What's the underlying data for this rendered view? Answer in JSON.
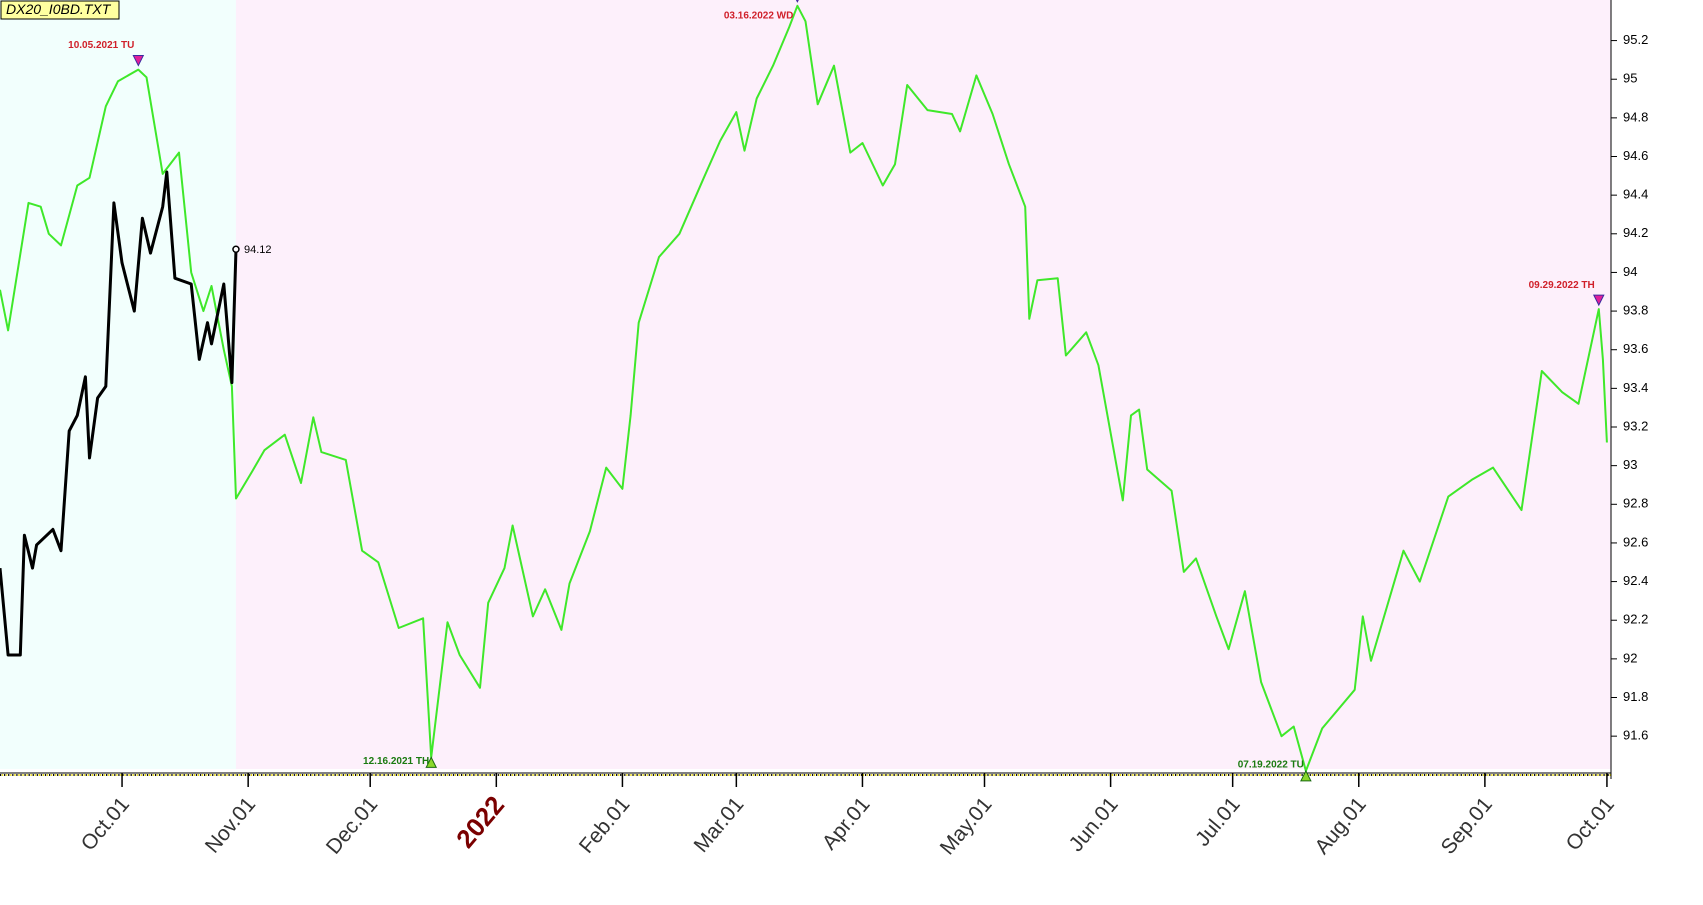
{
  "chart_data": {
    "type": "line",
    "title": "DX20_I0BD.TXT",
    "series": [
      {
        "color": "#3fe82a",
        "x": [
          "2021-09-01",
          "2021-09-03",
          "2021-09-08",
          "2021-09-11",
          "2021-09-13",
          "2021-09-16",
          "2021-09-20",
          "2021-09-23",
          "2021-09-27",
          "2021-09-30",
          "2021-10-05",
          "2021-10-07",
          "2021-10-11",
          "2021-10-15",
          "2021-10-18",
          "2021-10-21",
          "2021-10-23",
          "2021-10-26",
          "2021-10-28",
          "2021-10-29",
          "2021-11-02",
          "2021-11-05",
          "2021-11-10",
          "2021-11-14",
          "2021-11-17",
          "2021-11-19",
          "2021-11-25",
          "2021-11-29",
          "2021-12-03",
          "2021-12-08",
          "2021-12-14",
          "2021-12-16",
          "2021-12-20",
          "2021-12-23",
          "2021-12-28",
          "2021-12-30",
          "2022-01-03",
          "2022-01-05",
          "2022-01-10",
          "2022-01-13",
          "2022-01-17",
          "2022-01-19",
          "2022-01-24",
          "2022-01-28",
          "2022-02-01",
          "2022-02-03",
          "2022-02-05",
          "2022-02-10",
          "2022-02-15",
          "2022-02-21",
          "2022-02-25",
          "2022-03-01",
          "2022-03-03",
          "2022-03-06",
          "2022-03-10",
          "2022-03-14",
          "2022-03-16",
          "2022-03-18",
          "2022-03-21",
          "2022-03-25",
          "2022-03-29",
          "2022-04-01",
          "2022-04-06",
          "2022-04-09",
          "2022-04-12",
          "2022-04-17",
          "2022-04-23",
          "2022-04-25",
          "2022-04-29",
          "2022-05-03",
          "2022-05-07",
          "2022-05-11",
          "2022-05-12",
          "2022-05-14",
          "2022-05-19",
          "2022-05-21",
          "2022-05-26",
          "2022-05-29",
          "2022-06-04",
          "2022-06-06",
          "2022-06-08",
          "2022-06-10",
          "2022-06-16",
          "2022-06-19",
          "2022-06-22",
          "2022-06-27",
          "2022-06-30",
          "2022-07-04",
          "2022-07-08",
          "2022-07-13",
          "2022-07-16",
          "2022-07-19",
          "2022-07-23",
          "2022-07-31",
          "2022-08-02",
          "2022-08-04",
          "2022-08-12",
          "2022-08-16",
          "2022-08-23",
          "2022-08-29",
          "2022-09-03",
          "2022-09-10",
          "2022-09-15",
          "2022-09-20",
          "2022-09-24",
          "2022-09-29",
          "2022-09-30",
          "2022-10-01"
        ],
        "values": [
          93.91,
          93.7,
          94.36,
          94.34,
          94.2,
          94.14,
          94.45,
          94.49,
          94.86,
          94.99,
          95.05,
          95.01,
          94.51,
          94.62,
          94.0,
          93.8,
          93.93,
          93.6,
          93.41,
          92.83,
          92.97,
          93.08,
          93.16,
          92.91,
          93.25,
          93.07,
          93.03,
          92.56,
          92.5,
          92.16,
          92.21,
          91.49,
          92.19,
          92.02,
          91.85,
          92.29,
          92.47,
          92.69,
          92.22,
          92.36,
          92.15,
          92.39,
          92.66,
          92.99,
          92.88,
          93.26,
          93.74,
          94.08,
          94.2,
          94.49,
          94.68,
          94.83,
          94.63,
          94.9,
          95.07,
          95.27,
          95.38,
          95.3,
          94.87,
          95.07,
          94.62,
          94.67,
          94.45,
          94.56,
          94.97,
          94.84,
          94.82,
          94.73,
          95.02,
          94.82,
          94.56,
          94.34,
          93.76,
          93.96,
          93.97,
          93.57,
          93.69,
          93.52,
          92.82,
          93.26,
          93.29,
          92.98,
          92.87,
          92.45,
          92.52,
          92.22,
          92.05,
          92.35,
          91.88,
          91.6,
          91.65,
          91.42,
          91.64,
          91.84,
          92.22,
          91.99,
          92.56,
          92.4,
          92.84,
          92.93,
          92.99,
          92.77,
          93.49,
          93.38,
          93.32,
          93.81,
          93.55,
          93.12
        ]
      },
      {
        "color": "#000000",
        "x": [
          "2021-09-01",
          "2021-09-03",
          "2021-09-06",
          "2021-09-07",
          "2021-09-09",
          "2021-09-10",
          "2021-09-14",
          "2021-09-16",
          "2021-09-18",
          "2021-09-20",
          "2021-09-22",
          "2021-09-23",
          "2021-09-25",
          "2021-09-27",
          "2021-09-29",
          "2021-10-01",
          "2021-10-04",
          "2021-10-06",
          "2021-10-08",
          "2021-10-11",
          "2021-10-12",
          "2021-10-14",
          "2021-10-18",
          "2021-10-20",
          "2021-10-22",
          "2021-10-23",
          "2021-10-26",
          "2021-10-28",
          "2021-10-29"
        ],
        "values": [
          92.47,
          92.02,
          92.02,
          92.64,
          92.47,
          92.59,
          92.67,
          92.56,
          93.18,
          93.26,
          93.46,
          93.04,
          93.35,
          93.41,
          94.36,
          94.05,
          93.8,
          94.28,
          94.1,
          94.34,
          94.52,
          93.97,
          93.94,
          93.55,
          93.74,
          93.63,
          93.94,
          93.43,
          94.12
        ]
      }
    ],
    "annotations": [
      {
        "text": "10.05.2021 TU"
      },
      {
        "text": "12.16.2021 TH"
      },
      {
        "text": "03.16.2022 WD"
      },
      {
        "text": "07.19.2022 TU"
      },
      {
        "text": "09.29.2022 TH"
      }
    ],
    "xlim": [
      "2021-09-01",
      "2022-10-02"
    ],
    "xticks": [
      {
        "value": "2021-10-01",
        "label": "Oct.01"
      },
      {
        "value": "2021-11-01",
        "label": "Nov.01"
      },
      {
        "value": "2021-12-01",
        "label": "Dec.01"
      },
      {
        "value": "2022-01-01",
        "label": "2022"
      },
      {
        "value": "2022-02-01",
        "label": "Feb.01"
      },
      {
        "value": "2022-03-01",
        "label": "Mar.01"
      },
      {
        "value": "2022-04-01",
        "label": "Apr.01"
      },
      {
        "value": "2022-05-01",
        "label": "May.01"
      },
      {
        "value": "2022-06-01",
        "label": "Jun.01"
      },
      {
        "value": "2022-07-01",
        "label": "Jul.01"
      },
      {
        "value": "2022-08-01",
        "label": "Aug.01"
      },
      {
        "value": "2022-09-01",
        "label": "Sep.01"
      },
      {
        "value": "2022-10-01",
        "label": "Oct.01"
      }
    ],
    "ylim": [
      91.43,
      95.41
    ],
    "yticks": [
      91.6,
      91.8,
      92,
      92.2,
      92.4,
      92.6,
      92.8,
      93,
      93.2,
      93.4,
      93.6,
      93.8,
      94,
      94.2,
      94.4,
      94.6,
      94.8,
      95,
      95.2
    ]
  }
}
